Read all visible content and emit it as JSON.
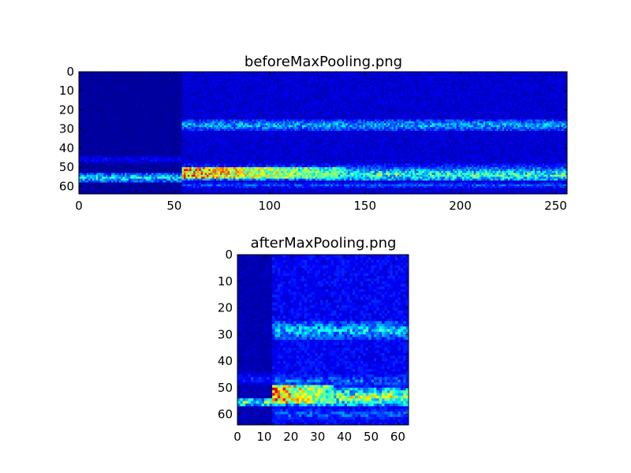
{
  "colors": {
    "background": "#ffffff",
    "axis": "#000000",
    "colormap": "jet",
    "jet_stops": [
      "#00007f",
      "#0000ff",
      "#007fff",
      "#00ffff",
      "#7fff7f",
      "#ffff00",
      "#ff7f00",
      "#ff0000",
      "#7f0000"
    ]
  },
  "chart_data": [
    {
      "type": "heatmap",
      "title": "beforeMaxPooling.png",
      "xlabel": "",
      "ylabel": "",
      "colormap": "jet",
      "grid": false,
      "columns": 256,
      "rows": 64,
      "xlim": [
        0,
        256
      ],
      "ylim": [
        64,
        0
      ],
      "xticks": [
        0,
        50,
        100,
        150,
        200,
        250
      ],
      "yticks": [
        0,
        10,
        20,
        30,
        40,
        50,
        60
      ],
      "segments": [
        {
          "x_range": [
            0,
            54
          ],
          "background_intensity": 0.03,
          "bands": [
            {
              "row_range": [
                53,
                58
              ],
              "intensity": 0.35
            },
            {
              "row_range": [
                44,
                48
              ],
              "intensity": 0.12
            }
          ]
        },
        {
          "x_range": [
            54,
            256
          ],
          "background_intensity": 0.08,
          "bands": [
            {
              "row_range": [
                25,
                31
              ],
              "intensity": 0.3
            },
            {
              "row_range": [
                48,
                53
              ],
              "intensity": 0.2
            },
            {
              "row_range": [
                51,
                57
              ],
              "intensity": 0.45
            },
            {
              "row_range": [
                58,
                61
              ],
              "intensity": 0.2
            }
          ],
          "hotspot": {
            "x_range": [
              54,
              140
            ],
            "row_range": [
              50,
              56
            ],
            "peak_intensity": 0.95
          }
        }
      ]
    },
    {
      "type": "heatmap",
      "title": "afterMaxPooling.png",
      "xlabel": "",
      "ylabel": "",
      "colormap": "jet",
      "grid": false,
      "columns": 64,
      "rows": 64,
      "xlim": [
        0,
        64
      ],
      "ylim": [
        64,
        0
      ],
      "xticks": [
        0,
        10,
        20,
        30,
        40,
        50,
        60
      ],
      "yticks": [
        0,
        10,
        20,
        30,
        40,
        50,
        60
      ],
      "segments": [
        {
          "x_range": [
            0,
            13
          ],
          "background_intensity": 0.05,
          "bands": [
            {
              "row_range": [
                54,
                57
              ],
              "intensity": 0.45
            },
            {
              "row_range": [
                44,
                49
              ],
              "intensity": 0.15
            }
          ]
        },
        {
          "x_range": [
            13,
            64
          ],
          "background_intensity": 0.12,
          "bands": [
            {
              "row_range": [
                25,
                32
              ],
              "intensity": 0.32
            },
            {
              "row_range": [
                45,
                50
              ],
              "intensity": 0.22
            },
            {
              "row_range": [
                50,
                57
              ],
              "intensity": 0.5
            },
            {
              "row_range": [
                58,
                62
              ],
              "intensity": 0.22
            }
          ],
          "hotspot": {
            "x_range": [
              13,
              36
            ],
            "row_range": [
              49,
              56
            ],
            "peak_intensity": 0.97
          }
        }
      ]
    }
  ]
}
